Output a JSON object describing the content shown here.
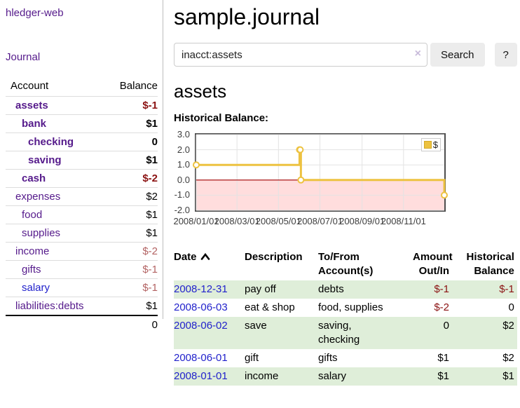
{
  "sidebar": {
    "app_title": "hledger-web",
    "nav": {
      "journal_label": "Journal"
    },
    "accounts_table": {
      "headers": {
        "account": "Account",
        "balance": "Balance"
      },
      "rows": [
        {
          "name": "assets",
          "balance": "$-1",
          "indent": 0,
          "selected": true,
          "link": "purple"
        },
        {
          "name": "bank",
          "balance": "$1",
          "indent": 1,
          "selected": true,
          "link": "purple"
        },
        {
          "name": "checking",
          "balance": "0",
          "indent": 2,
          "selected": true,
          "link": "purple"
        },
        {
          "name": "saving",
          "balance": "$1",
          "indent": 2,
          "selected": true,
          "link": "purple"
        },
        {
          "name": "cash",
          "balance": "$-2",
          "indent": 1,
          "selected": true,
          "link": "purple"
        },
        {
          "name": "expenses",
          "balance": "$2",
          "indent": 0,
          "selected": false,
          "link": "purple"
        },
        {
          "name": "food",
          "balance": "$1",
          "indent": 1,
          "selected": false,
          "link": "purple"
        },
        {
          "name": "supplies",
          "balance": "$1",
          "indent": 1,
          "selected": false,
          "link": "purple"
        },
        {
          "name": "income",
          "balance": "$-2",
          "indent": 0,
          "selected": false,
          "link": "purple"
        },
        {
          "name": "gifts",
          "balance": "$-1",
          "indent": 1,
          "selected": false,
          "link": "purple"
        },
        {
          "name": "salary",
          "balance": "$-1",
          "indent": 1,
          "selected": false,
          "link": "blue"
        },
        {
          "name": "liabilities:debts",
          "balance": "$1",
          "indent": 0,
          "selected": false,
          "link": "purple"
        }
      ],
      "total": "0"
    }
  },
  "header": {
    "title": "sample.journal"
  },
  "search": {
    "query": "inacct:assets",
    "clear_icon": "×",
    "search_label": "Search",
    "help_label": "?"
  },
  "account_page": {
    "heading": "assets",
    "chart_label": "Historical Balance:"
  },
  "chart_data": {
    "type": "line",
    "title": "Historical Balance",
    "step": true,
    "series": [
      {
        "name": "$",
        "color": "#edc240",
        "points": [
          [
            "2008-01-01",
            1
          ],
          [
            "2008-06-01",
            2
          ],
          [
            "2008-06-02",
            2
          ],
          [
            "2008-06-03",
            0
          ],
          [
            "2008-12-31",
            -1
          ]
        ]
      }
    ],
    "xlim": [
      "2008-01-01",
      "2008-12-31"
    ],
    "ylim": [
      -2,
      3
    ],
    "yticks": [
      "3.0",
      "2.0",
      "1.0",
      "0.0",
      "-1.0",
      "-2.0"
    ],
    "xticks": [
      {
        "date": "2008-01-01",
        "label": "2008/01/01"
      },
      {
        "date": "2008-03-01",
        "label": "2008/03/01"
      },
      {
        "date": "2008-05-01",
        "label": "2008/05/01"
      },
      {
        "date": "2008-07-01",
        "label": "2008/07/01"
      },
      {
        "date": "2008-09-01",
        "label": "2008/09/01"
      },
      {
        "date": "2008-11-01",
        "label": "2008/11/01"
      }
    ],
    "grid": true,
    "legend": {
      "position": "top-right",
      "label": "$"
    },
    "negative_region": {
      "fill": "#ffdddd",
      "line": "#a40000"
    }
  },
  "register_table": {
    "headers": {
      "date": "Date",
      "description": "Description",
      "accounts": "To/From\nAccount(s)",
      "amount": "Amount\nOut/In",
      "balance": "Historical\nBalance"
    },
    "rows": [
      {
        "date": "2008-12-31",
        "description": "pay off",
        "accounts": "debts",
        "amount": "$-1",
        "balance": "$-1"
      },
      {
        "date": "2008-06-03",
        "description": "eat & shop",
        "accounts": "food, supplies",
        "amount": "$-2",
        "balance": "0"
      },
      {
        "date": "2008-06-02",
        "description": "save",
        "accounts": "saving,\nchecking",
        "amount": "0",
        "balance": "$2"
      },
      {
        "date": "2008-06-01",
        "description": "gift",
        "accounts": "gifts",
        "amount": "$1",
        "balance": "$2"
      },
      {
        "date": "2008-01-01",
        "description": "income",
        "accounts": "salary",
        "amount": "$1",
        "balance": "$1"
      }
    ]
  }
}
